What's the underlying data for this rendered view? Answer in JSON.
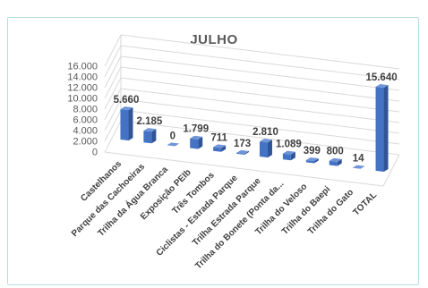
{
  "chart_data": {
    "type": "bar",
    "title": "JULHO",
    "categories": [
      "Castelhanos",
      "Parque das Cachoeiras",
      "Trilha da Água Branca",
      "Exposição PEIb",
      "Três Tombos",
      "Ciclistas - Estrada Parque",
      "Trilha Estrada Parque",
      "Trilha do Bonete (Ponta da...",
      "Trilha do Veloso",
      "Trilha do Baepi",
      "Trilha do Gato",
      "TOTAL"
    ],
    "values": [
      5660,
      2185,
      0,
      1799,
      711,
      173,
      2810,
      1089,
      399,
      800,
      14,
      15640
    ],
    "data_labels": [
      "5.660",
      "2.185",
      "0",
      "1.799",
      "711",
      "173",
      "2.810",
      "1.089",
      "399",
      "800",
      "14",
      "15.640"
    ],
    "y_ticks": [
      "0",
      "2.000",
      "4.000",
      "6.000",
      "8.000",
      "10.000",
      "12.000",
      "14.000",
      "16.000"
    ],
    "ylim": [
      0,
      16000
    ],
    "grid": true,
    "xlabel": "",
    "ylabel": "",
    "bar_color": "#4472c4"
  }
}
